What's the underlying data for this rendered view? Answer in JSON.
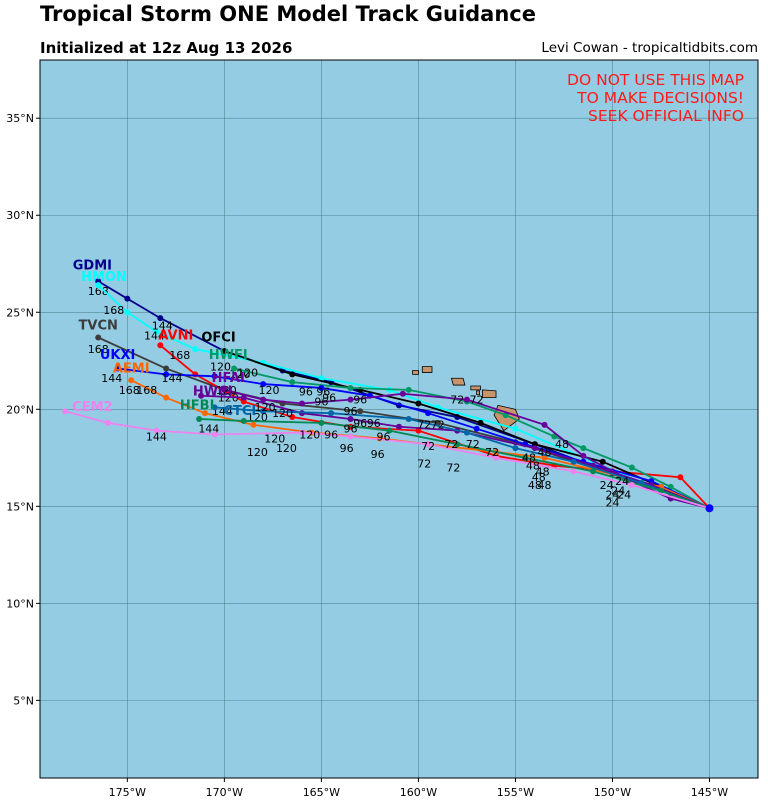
{
  "header": {
    "title": "Tropical Storm ONE Model Track Guidance",
    "subtitle": "Initialized at 12z Aug 13 2026",
    "credit": "Levi Cowan - tropicaltidbits.com"
  },
  "warning": [
    "DO NOT USE THIS MAP",
    "TO MAKE DECISIONS!",
    "SEEK OFFICIAL INFO"
  ],
  "colors": {
    "ocean": "#94cde3",
    "land": "#c8956a",
    "grid": "#3a6a7a",
    "warning": "#ff1a1a"
  },
  "map": {
    "lon_range": [
      -179.5,
      -142.5
    ],
    "lat_range": [
      1,
      38
    ],
    "x_ticks": [
      {
        "lon": -175,
        "label": "175°W"
      },
      {
        "lon": -170,
        "label": "170°W"
      },
      {
        "lon": -165,
        "label": "165°W"
      },
      {
        "lon": -160,
        "label": "160°W"
      },
      {
        "lon": -155,
        "label": "155°W"
      },
      {
        "lon": -150,
        "label": "150°W"
      },
      {
        "lon": -145,
        "label": "145°W"
      }
    ],
    "y_ticks": [
      {
        "lat": 5,
        "label": "5°N"
      },
      {
        "lat": 10,
        "label": "10°N"
      },
      {
        "lat": 15,
        "label": "15°N"
      },
      {
        "lat": 20,
        "label": "20°N"
      },
      {
        "lat": 25,
        "label": "25°N"
      },
      {
        "lat": 30,
        "label": "30°N"
      },
      {
        "lat": 35,
        "label": "35°N"
      }
    ],
    "islands": [
      [
        [
          -155.9,
          20.2
        ],
        [
          -155.0,
          20.0
        ],
        [
          -154.8,
          19.5
        ],
        [
          -155.6,
          18.9
        ],
        [
          -156.1,
          19.7
        ]
      ],
      [
        [
          -156.7,
          21.0
        ],
        [
          -156.0,
          20.95
        ],
        [
          -156.0,
          20.6
        ],
        [
          -156.7,
          20.6
        ]
      ],
      [
        [
          -157.3,
          21.2
        ],
        [
          -156.8,
          21.2
        ],
        [
          -156.8,
          21.0
        ],
        [
          -157.3,
          21.0
        ]
      ],
      [
        [
          -158.3,
          21.6
        ],
        [
          -157.7,
          21.6
        ],
        [
          -157.6,
          21.25
        ],
        [
          -158.2,
          21.25
        ]
      ],
      [
        [
          -159.8,
          22.2
        ],
        [
          -159.3,
          22.2
        ],
        [
          -159.3,
          21.9
        ],
        [
          -159.8,
          21.9
        ]
      ],
      [
        [
          -160.3,
          22.0
        ],
        [
          -160.0,
          22.0
        ],
        [
          -160.0,
          21.8
        ],
        [
          -160.3,
          21.8
        ]
      ],
      [
        [
          -157.0,
          20.95
        ],
        [
          -156.85,
          20.95
        ],
        [
          -156.85,
          20.75
        ],
        [
          -157.0,
          20.75
        ]
      ]
    ]
  },
  "tracks": [
    {
      "name": "GDMI",
      "color": "#00008b",
      "points": [
        [
          -145,
          14.9
        ],
        [
          -147,
          15.7
        ],
        [
          -150,
          16.7
        ],
        [
          -154,
          18.2
        ],
        [
          -158,
          19.6
        ],
        [
          -161,
          20.2
        ],
        [
          -164.5,
          21.4
        ],
        [
          -167,
          22
        ],
        [
          -170,
          23
        ],
        [
          -173.3,
          24.7
        ],
        [
          -175,
          25.7
        ],
        [
          -176.5,
          26.6
        ]
      ],
      "label_lonlat": [
        -176.8,
        27.2
      ],
      "step_labels": [
        {
          "lonlat": [
            -176.5,
            25.9
          ],
          "text": "168"
        }
      ]
    },
    {
      "name": "HMON",
      "color": "#00ffff",
      "points": [
        [
          -145,
          14.9
        ],
        [
          -148,
          16
        ],
        [
          -151,
          17.3
        ],
        [
          -155,
          19
        ],
        [
          -159,
          20.1
        ],
        [
          -161.5,
          21
        ],
        [
          -165,
          21.6
        ],
        [
          -168,
          22.4
        ],
        [
          -171.5,
          23.1
        ],
        [
          -173.5,
          24
        ],
        [
          -175,
          25
        ],
        [
          -176.5,
          26.4
        ]
      ],
      "label_lonlat": [
        -176.2,
        26.6
      ],
      "step_labels": [
        {
          "lonlat": [
            -175.7,
            24.9
          ],
          "text": "168"
        }
      ]
    },
    {
      "name": "TVCN",
      "color": "#3c3c3c",
      "points": [
        [
          -145,
          14.9
        ],
        [
          -147.5,
          15.8
        ],
        [
          -151,
          17
        ],
        [
          -155,
          18.3
        ],
        [
          -159,
          19.3
        ],
        [
          -163,
          19.9
        ],
        [
          -167,
          20.3
        ],
        [
          -170,
          21
        ],
        [
          -173,
          22.1
        ],
        [
          -176.5,
          23.7
        ]
      ],
      "label_lonlat": [
        -176.5,
        24.1
      ],
      "step_labels": [
        {
          "lonlat": [
            -176.5,
            22.9
          ],
          "text": "168"
        }
      ]
    },
    {
      "name": "AVNI",
      "color": "#ff0000",
      "points": [
        [
          -145,
          14.9
        ],
        [
          -146.5,
          16.5
        ],
        [
          -150,
          16.8
        ],
        [
          -153,
          17.1
        ],
        [
          -156,
          17.6
        ],
        [
          -160,
          18.9
        ],
        [
          -163.5,
          19.1
        ],
        [
          -166.5,
          19.6
        ],
        [
          -169,
          20.4
        ],
        [
          -171.5,
          21.8
        ],
        [
          -173.3,
          23.3
        ]
      ],
      "label_lonlat": [
        -172.5,
        23.6
      ],
      "step_labels": [
        {
          "lonlat": [
            -173.2,
            24.1
          ],
          "text": "144"
        },
        {
          "lonlat": [
            -173.6,
            23.6
          ],
          "text": "144"
        },
        {
          "lonlat": [
            -172.3,
            22.6
          ],
          "text": "168"
        }
      ]
    },
    {
      "name": "OFCI",
      "color": "#000000",
      "points": [
        [
          -145,
          14.9
        ],
        [
          -147.5,
          16
        ],
        [
          -150.5,
          17.3
        ],
        [
          -154,
          18.2
        ],
        [
          -156.8,
          19.3
        ],
        [
          -160,
          20.3
        ],
        [
          -163,
          21
        ],
        [
          -166.5,
          21.8
        ],
        [
          -170,
          23
        ]
      ],
      "label_lonlat": [
        -170.3,
        23.5
      ],
      "step_labels": [
        {
          "lonlat": [
            -170.2,
            22.0
          ],
          "text": "120"
        },
        {
          "lonlat": [
            -169.2,
            21.6
          ],
          "text": "120"
        }
      ]
    },
    {
      "name": "HWFI",
      "color": "#009966",
      "points": [
        [
          -145,
          14.9
        ],
        [
          -147,
          16
        ],
        [
          -149,
          17
        ],
        [
          -151.5,
          18
        ],
        [
          -153,
          18.6
        ],
        [
          -155.5,
          19.7
        ],
        [
          -157.5,
          20.4
        ],
        [
          -160.5,
          21
        ],
        [
          -163.5,
          21.1
        ],
        [
          -166.5,
          21.4
        ],
        [
          -169.5,
          22.1
        ]
      ],
      "label_lonlat": [
        -169.8,
        22.6
      ],
      "step_labels": [
        {
          "lonlat": [
            -168.8,
            21.7
          ],
          "text": "120"
        },
        {
          "lonlat": [
            -169.8,
            20.4
          ],
          "text": "120"
        }
      ]
    },
    {
      "name": "UKXI",
      "color": "#0000ff",
      "points": [
        [
          -145,
          14.9
        ],
        [
          -148,
          16.3
        ],
        [
          -151.5,
          17.3
        ],
        [
          -154.5,
          18.2
        ],
        [
          -157,
          19
        ],
        [
          -159.5,
          19.8
        ],
        [
          -162.5,
          20.7
        ],
        [
          -165,
          21.1
        ],
        [
          -168,
          21.3
        ],
        [
          -170.5,
          21.7
        ],
        [
          -173,
          21.8
        ],
        [
          -175.5,
          22.1
        ]
      ],
      "label_lonlat": [
        -175.5,
        22.6
      ],
      "step_labels": [
        {
          "lonlat": [
            -175.8,
            21.4
          ],
          "text": "144"
        },
        {
          "lonlat": [
            -174.9,
            20.8
          ],
          "text": "168"
        },
        {
          "lonlat": [
            -172.7,
            21.4
          ],
          "text": "144"
        },
        {
          "lonlat": [
            -167.7,
            20.8
          ],
          "text": "120"
        }
      ]
    },
    {
      "name": "AEMI",
      "color": "#ff6600",
      "points": [
        [
          -145,
          14.9
        ],
        [
          -147.5,
          16
        ],
        [
          -151,
          16.9
        ],
        [
          -153.5,
          17.5
        ],
        [
          -156,
          17.8
        ],
        [
          -159.5,
          18.2
        ],
        [
          -162,
          18.5
        ],
        [
          -165.5,
          18.8
        ],
        [
          -168.5,
          19.2
        ],
        [
          -171,
          19.8
        ],
        [
          -173,
          20.6
        ],
        [
          -174.8,
          21.5
        ]
      ],
      "label_lonlat": [
        -174.8,
        21.9
      ],
      "step_labels": [
        {
          "lonlat": [
            -174.0,
            20.8
          ],
          "text": "168"
        }
      ]
    },
    {
      "name": "HFAI",
      "color": "#6a0099",
      "points": [
        [
          -145,
          14.9
        ],
        [
          -147,
          15.4
        ],
        [
          -149,
          16.3
        ],
        [
          -151.5,
          17.6
        ],
        [
          -153.5,
          19.2
        ],
        [
          -157.5,
          20.5
        ],
        [
          -160.8,
          20.8
        ],
        [
          -163.5,
          20.5
        ],
        [
          -166,
          20.3
        ],
        [
          -168,
          20.5
        ],
        [
          -170,
          21
        ]
      ],
      "label_lonlat": [
        -169.8,
        21.4
      ],
      "step_labels": [
        {
          "lonlat": [
            -169.9,
            20.8
          ],
          "text": "120"
        }
      ]
    },
    {
      "name": "HWCI",
      "color": "#660099",
      "points": [
        [
          -145,
          14.9
        ],
        [
          -148,
          16.1
        ],
        [
          -151,
          17.1
        ],
        [
          -154,
          18
        ],
        [
          -158,
          18.9
        ],
        [
          -161,
          19.1
        ],
        [
          -163.5,
          19.5
        ],
        [
          -166,
          19.8
        ],
        [
          -169,
          20.6
        ],
        [
          -171.2,
          20.7
        ]
      ],
      "label_lonlat": [
        -170.6,
        20.7
      ],
      "step_labels": [
        {
          "lonlat": [
            -170.1,
            19.7
          ],
          "text": "144"
        }
      ]
    },
    {
      "name": "CTCI",
      "color": "#0066aa",
      "points": [
        [
          -145,
          14.9
        ],
        [
          -148.5,
          16.2
        ],
        [
          -152,
          17.3
        ],
        [
          -155,
          18
        ],
        [
          -157.5,
          18.8
        ],
        [
          -160.5,
          19.5
        ],
        [
          -164.5,
          19.8
        ],
        [
          -168,
          19.9
        ],
        [
          -170.5,
          20.1
        ]
      ],
      "label_lonlat": [
        -169.2,
        19.7
      ],
      "step_labels": [
        {
          "lonlat": [
            -168.3,
            19.4
          ],
          "text": "120"
        },
        {
          "lonlat": [
            -167.9,
            19.9
          ],
          "text": "120"
        }
      ]
    },
    {
      "name": "HFBI",
      "color": "#008855",
      "points": [
        [
          -145,
          14.9
        ],
        [
          -147.5,
          15.8
        ],
        [
          -151,
          16.8
        ],
        [
          -154.5,
          17.5
        ],
        [
          -158,
          18.2
        ],
        [
          -161.5,
          18.9
        ],
        [
          -165,
          19.3
        ],
        [
          -169,
          19.4
        ],
        [
          -171.3,
          19.5
        ]
      ],
      "label_lonlat": [
        -171.4,
        20.0
      ],
      "step_labels": [
        {
          "lonlat": [
            -170.8,
            18.8
          ],
          "text": "144"
        }
      ]
    },
    {
      "name": "CEM2",
      "color": "#ee82ee",
      "points": [
        [
          -145,
          14.9
        ],
        [
          -149,
          16.1
        ],
        [
          -152,
          16.8
        ],
        [
          -156,
          17.5
        ],
        [
          -159.5,
          18.2
        ],
        [
          -163.5,
          18.6
        ],
        [
          -166,
          18.8
        ],
        [
          -170.5,
          18.7
        ],
        [
          -173.5,
          18.9
        ],
        [
          -176,
          19.3
        ],
        [
          -178.2,
          19.9
        ]
      ],
      "label_lonlat": [
        -176.8,
        19.9
      ],
      "step_labels": [
        {
          "lonlat": [
            -173.5,
            18.4
          ],
          "text": "144"
        }
      ]
    }
  ],
  "lead_labels": [
    {
      "lonlat": [
        -165.8,
        20.7
      ],
      "text": "96"
    },
    {
      "lonlat": [
        -164.9,
        20.7
      ],
      "text": "96"
    },
    {
      "lonlat": [
        -164.6,
        20.4
      ],
      "text": "96"
    },
    {
      "lonlat": [
        -165.0,
        20.2
      ],
      "text": "96"
    },
    {
      "lonlat": [
        -163.0,
        20.3
      ],
      "text": "96"
    },
    {
      "lonlat": [
        -163.5,
        19.7
      ],
      "text": "96"
    },
    {
      "lonlat": [
        -163.0,
        19.1
      ],
      "text": "96"
    },
    {
      "lonlat": [
        -162.3,
        19.1
      ],
      "text": "96"
    },
    {
      "lonlat": [
        -163.5,
        18.8
      ],
      "text": "96"
    },
    {
      "lonlat": [
        -164.5,
        18.5
      ],
      "text": "96"
    },
    {
      "lonlat": [
        -161.8,
        18.4
      ],
      "text": "96"
    },
    {
      "lonlat": [
        -163.7,
        17.8
      ],
      "text": "96"
    },
    {
      "lonlat": [
        -162.1,
        17.5
      ],
      "text": "96"
    },
    {
      "lonlat": [
        -167.0,
        19.6
      ],
      "text": "120"
    },
    {
      "lonlat": [
        -167.4,
        18.3
      ],
      "text": "120"
    },
    {
      "lonlat": [
        -165.6,
        18.5
      ],
      "text": "120"
    },
    {
      "lonlat": [
        -166.8,
        17.8
      ],
      "text": "120"
    },
    {
      "lonlat": [
        -168.3,
        17.6
      ],
      "text": "120"
    },
    {
      "lonlat": [
        -158.0,
        20.3
      ],
      "text": "72"
    },
    {
      "lonlat": [
        -157.0,
        20.3
      ],
      "text": "72"
    },
    {
      "lonlat": [
        -159.7,
        19.0
      ],
      "text": "72"
    },
    {
      "lonlat": [
        -159.0,
        19.0
      ],
      "text": "72"
    },
    {
      "lonlat": [
        -158.3,
        18.0
      ],
      "text": "72"
    },
    {
      "lonlat": [
        -159.5,
        17.9
      ],
      "text": "72"
    },
    {
      "lonlat": [
        -157.2,
        18.0
      ],
      "text": "72"
    },
    {
      "lonlat": [
        -156.2,
        17.6
      ],
      "text": "72"
    },
    {
      "lonlat": [
        -159.7,
        17.0
      ],
      "text": "72"
    },
    {
      "lonlat": [
        -158.2,
        16.8
      ],
      "text": "72"
    },
    {
      "lonlat": [
        -152.6,
        18.0
      ],
      "text": "48"
    },
    {
      "lonlat": [
        -153.5,
        17.6
      ],
      "text": "48"
    },
    {
      "lonlat": [
        -154.3,
        17.3
      ],
      "text": "48"
    },
    {
      "lonlat": [
        -154.1,
        16.9
      ],
      "text": "48"
    },
    {
      "lonlat": [
        -153.6,
        16.6
      ],
      "text": "48"
    },
    {
      "lonlat": [
        -153.8,
        16.3
      ],
      "text": "48"
    },
    {
      "lonlat": [
        -154.0,
        15.9
      ],
      "text": "48"
    },
    {
      "lonlat": [
        -153.5,
        15.9
      ],
      "text": "48"
    },
    {
      "lonlat": [
        -149.5,
        16.1
      ],
      "text": "24"
    },
    {
      "lonlat": [
        -150.3,
        15.9
      ],
      "text": "24"
    },
    {
      "lonlat": [
        -149.7,
        15.6
      ],
      "text": "24"
    },
    {
      "lonlat": [
        -150.0,
        15.4
      ],
      "text": "24"
    },
    {
      "lonlat": [
        -149.4,
        15.4
      ],
      "text": "24"
    },
    {
      "lonlat": [
        -150.0,
        15.0
      ],
      "text": "24"
    }
  ]
}
